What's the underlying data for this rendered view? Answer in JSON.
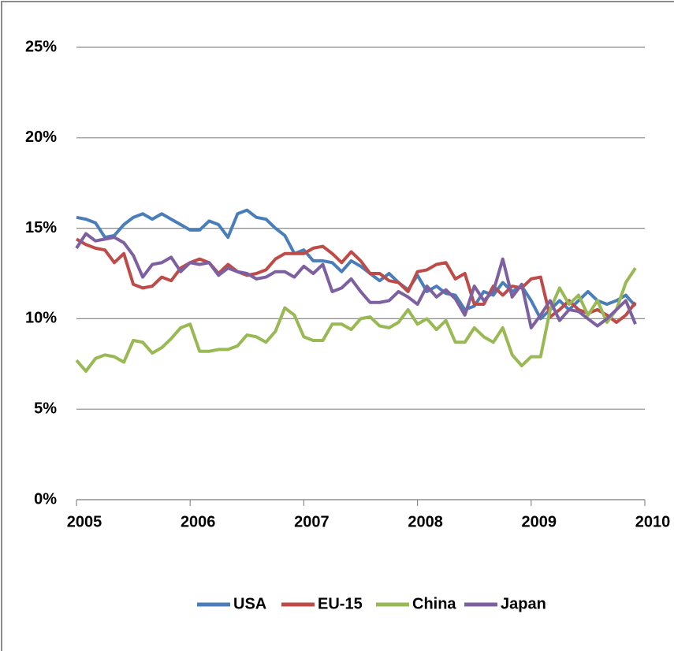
{
  "chart_data": {
    "type": "line",
    "x": [
      2005,
      2005.083,
      2005.167,
      2005.25,
      2005.333,
      2005.417,
      2005.5,
      2005.583,
      2005.667,
      2005.75,
      2005.833,
      2005.917,
      2006,
      2006.083,
      2006.167,
      2006.25,
      2006.333,
      2006.417,
      2006.5,
      2006.583,
      2006.667,
      2006.75,
      2006.833,
      2006.917,
      2007,
      2007.083,
      2007.167,
      2007.25,
      2007.333,
      2007.417,
      2007.5,
      2007.583,
      2007.667,
      2007.75,
      2007.833,
      2007.917,
      2008,
      2008.083,
      2008.167,
      2008.25,
      2008.333,
      2008.417,
      2008.5,
      2008.583,
      2008.667,
      2008.75,
      2008.833,
      2008.917,
      2009,
      2009.083,
      2009.167,
      2009.25,
      2009.333,
      2009.417,
      2009.5,
      2009.583,
      2009.667,
      2009.75,
      2009.833,
      2009.917
    ],
    "series": [
      {
        "name": "USA",
        "color": "#4a7ebb",
        "values": [
          15.6,
          15.5,
          15.3,
          14.5,
          14.6,
          15.2,
          15.6,
          15.8,
          15.5,
          15.8,
          15.5,
          15.2,
          14.9,
          14.9,
          15.4,
          15.2,
          14.5,
          15.8,
          16.0,
          15.6,
          15.5,
          15.0,
          14.6,
          13.6,
          13.8,
          13.2,
          13.2,
          13.1,
          12.6,
          13.2,
          12.9,
          12.5,
          12.1,
          12.5,
          12.0,
          11.6,
          12.4,
          11.5,
          11.8,
          11.4,
          11.3,
          10.5,
          10.7,
          11.5,
          11.3,
          12.0,
          11.5,
          11.8,
          11.0,
          10.0,
          10.5,
          11.0,
          10.5,
          11.0,
          11.5,
          11.0,
          10.8,
          11.0,
          11.3,
          10.7
        ]
      },
      {
        "name": "EU-15",
        "color": "#be4b48",
        "values": [
          14.4,
          14.1,
          13.9,
          13.8,
          13.1,
          13.6,
          11.9,
          11.7,
          11.8,
          12.3,
          12.1,
          12.8,
          13.1,
          13.3,
          13.1,
          12.5,
          13.0,
          12.6,
          12.4,
          12.5,
          12.7,
          13.3,
          13.6,
          13.6,
          13.6,
          13.9,
          14.0,
          13.6,
          13.1,
          13.7,
          13.2,
          12.5,
          12.5,
          12.1,
          12.0,
          11.5,
          12.6,
          12.7,
          13.0,
          13.1,
          12.2,
          12.5,
          10.8,
          10.8,
          11.8,
          11.3,
          11.8,
          11.7,
          12.2,
          12.3,
          10.1,
          10.5,
          11.0,
          10.5,
          10.3,
          10.5,
          10.2,
          9.8,
          10.2,
          10.9
        ]
      },
      {
        "name": "China",
        "color": "#98b954",
        "values": [
          7.7,
          7.1,
          7.8,
          8.0,
          7.9,
          7.6,
          8.8,
          8.7,
          8.1,
          8.4,
          8.9,
          9.5,
          9.7,
          8.2,
          8.2,
          8.3,
          8.3,
          8.5,
          9.1,
          9.0,
          8.7,
          9.3,
          10.6,
          10.2,
          9.0,
          8.8,
          8.8,
          9.7,
          9.7,
          9.4,
          10.0,
          10.1,
          9.6,
          9.5,
          9.8,
          10.5,
          9.7,
          10.0,
          9.4,
          9.9,
          8.7,
          8.7,
          9.5,
          9.0,
          8.7,
          9.5,
          8.0,
          7.4,
          7.9,
          7.9,
          10.5,
          11.7,
          10.8,
          11.3,
          10.2,
          11.0,
          9.8,
          10.5,
          12.0,
          12.8
        ]
      },
      {
        "name": "Japan",
        "color": "#7d60a0",
        "values": [
          13.9,
          14.7,
          14.3,
          14.4,
          14.5,
          14.2,
          13.5,
          12.3,
          13.0,
          13.1,
          13.4,
          12.6,
          13.1,
          13.0,
          13.1,
          12.4,
          12.8,
          12.6,
          12.5,
          12.2,
          12.3,
          12.6,
          12.6,
          12.3,
          12.9,
          12.5,
          13.0,
          11.5,
          11.7,
          12.2,
          11.5,
          10.9,
          10.9,
          11.0,
          11.5,
          11.2,
          10.8,
          11.8,
          11.2,
          11.6,
          11.1,
          10.2,
          11.8,
          11.0,
          11.5,
          13.3,
          11.2,
          11.9,
          9.5,
          10.2,
          11.0,
          9.9,
          10.5,
          10.4,
          10.0,
          9.6,
          10.0,
          10.5,
          11.0,
          9.7
        ]
      }
    ],
    "xlim": [
      2005,
      2010
    ],
    "xticks": [
      2005,
      2006,
      2007,
      2008,
      2009,
      2010
    ],
    "ylim": [
      0,
      25
    ],
    "yticks": [
      {
        "value": 0,
        "label": "0%"
      },
      {
        "value": 5,
        "label": "5%"
      },
      {
        "value": 10,
        "label": "10%"
      },
      {
        "value": 15,
        "label": "15%"
      },
      {
        "value": 20,
        "label": "20%"
      },
      {
        "value": 25,
        "label": "25%"
      }
    ],
    "grid": true,
    "legend": "bottom"
  }
}
